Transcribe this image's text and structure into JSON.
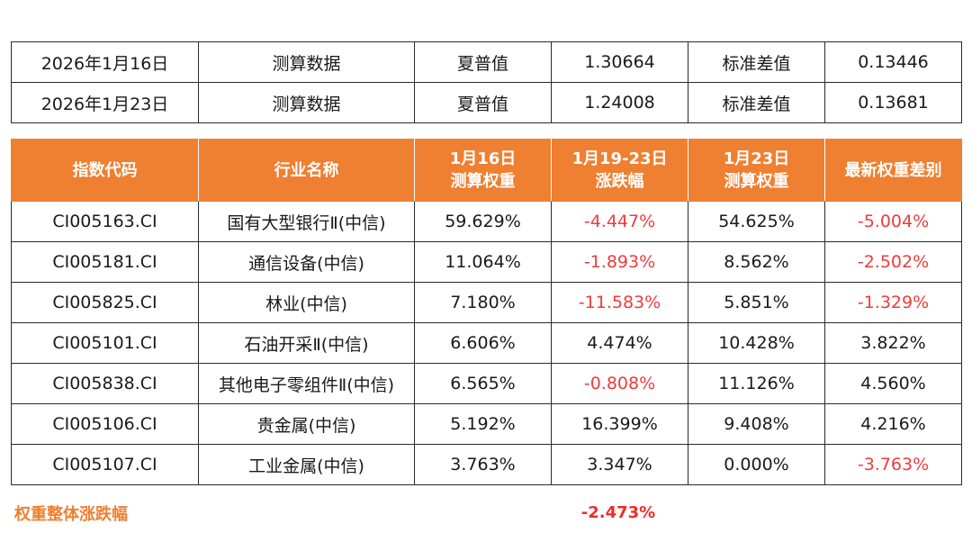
{
  "summary": [
    {
      "date": "2026年1月16日",
      "type": "测算数据",
      "sharpe_label": "夏普值",
      "sharpe": "1.30664",
      "std_label": "标准差值",
      "std": "0.13446"
    },
    {
      "date": "2026年1月23日",
      "type": "测算数据",
      "sharpe_label": "夏普值",
      "sharpe": "1.24008",
      "std_label": "标准差值",
      "std": "0.13681"
    }
  ],
  "table": {
    "headers": [
      {
        "line1": "指数代码",
        "line2": ""
      },
      {
        "line1": "行业名称",
        "line2": ""
      },
      {
        "line1": "1月16日",
        "line2": "测算权重"
      },
      {
        "line1": "1月19-23日",
        "line2": "涨跌幅"
      },
      {
        "line1": "1月23日",
        "line2": "测算权重"
      },
      {
        "line1": "最新权重差别",
        "line2": ""
      }
    ],
    "rows": [
      {
        "code": "CI005163.CI",
        "name": "国有大型银行Ⅱ(中信)",
        "w_0116": "59.629%",
        "change": "-4.447%",
        "w_0123": "54.625%",
        "diff": "-5.004%"
      },
      {
        "code": "CI005181.CI",
        "name": "通信设备(中信)",
        "w_0116": "11.064%",
        "change": "-1.893%",
        "w_0123": "8.562%",
        "diff": "-2.502%"
      },
      {
        "code": "CI005825.CI",
        "name": "林业(中信)",
        "w_0116": "7.180%",
        "change": "-11.583%",
        "w_0123": "5.851%",
        "diff": "-1.329%"
      },
      {
        "code": "CI005101.CI",
        "name": "石油开采Ⅱ(中信)",
        "w_0116": "6.606%",
        "change": "4.474%",
        "w_0123": "10.428%",
        "diff": "3.822%"
      },
      {
        "code": "CI005838.CI",
        "name": "其他电子零组件Ⅱ(中信)",
        "w_0116": "6.565%",
        "change": "-0.808%",
        "w_0123": "11.126%",
        "diff": "4.560%"
      },
      {
        "code": "CI005106.CI",
        "name": "贵金属(中信)",
        "w_0116": "5.192%",
        "change": "16.399%",
        "w_0123": "9.408%",
        "diff": "4.216%"
      },
      {
        "code": "CI005107.CI",
        "name": "工业金属(中信)",
        "w_0116": "3.763%",
        "change": "3.347%",
        "w_0123": "0.000%",
        "diff": "-3.763%"
      }
    ]
  },
  "footer": {
    "label": "权重整体涨跌幅",
    "value": "-2.473%"
  },
  "colors": {
    "header_bg": "#ef7f31",
    "negative": "#ef3b3b",
    "footer_label": "#ef7f31"
  }
}
